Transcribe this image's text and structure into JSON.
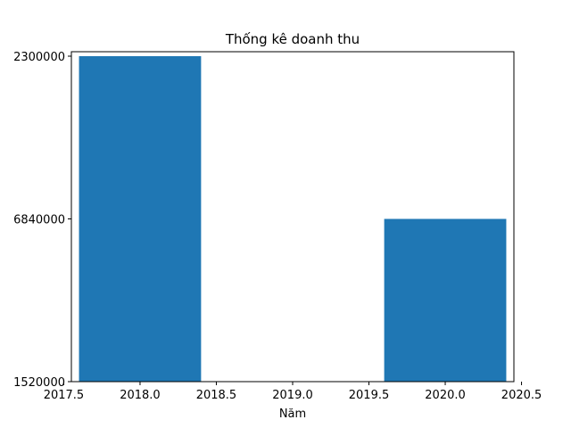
{
  "chart_data": {
    "type": "bar",
    "title": "Thống kê doanh thu",
    "xlabel": "Năm",
    "ylabel": "",
    "bar_color": "#1f77b4",
    "x": [
      2018,
      2019,
      2020
    ],
    "bar_width": 0.8,
    "bar_value_labels": [
      "2300000",
      "1520000",
      "6840000"
    ],
    "xlim": [
      2017.55,
      2020.45
    ],
    "x_ticks": [
      2017.5,
      2018.0,
      2018.5,
      2019.0,
      2019.5,
      2020.0,
      2020.5
    ],
    "x_tick_labels": [
      "2017.5",
      "2018.0",
      "2018.5",
      "2019.0",
      "2019.5",
      "2020.0",
      "2020.5"
    ],
    "y_categories": [
      "1520000",
      "6840000",
      "2300000"
    ],
    "grid": false,
    "legend": "none"
  }
}
